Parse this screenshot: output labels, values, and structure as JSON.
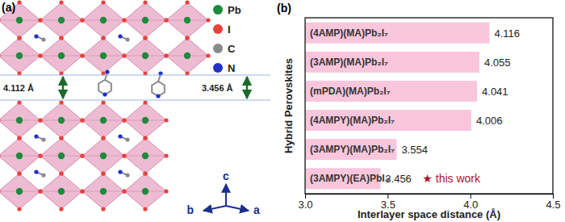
{
  "chart_data": {
    "type": "bar",
    "orientation": "horizontal",
    "title": "(b)",
    "x_label": "Interlayer space distance (Å)",
    "y_label": "Hybrid Perovskites",
    "categories": [
      "(4AMP)(MA)Pb₂I₇",
      "(3AMP)(MA)Pb₂I₇",
      "(mPDA)(MA)Pb₂I₇",
      "(4AMPY)(MA)Pb₂I₇",
      "(3AMPY)(MA)Pb₂I₇",
      "(3AMPY)(EA)PbI₄"
    ],
    "values": [
      4.116,
      4.055,
      4.041,
      4.006,
      3.554,
      3.456
    ],
    "color": "#f9c6dc",
    "data_labels": true,
    "annotations": [
      "★ this work"
    ],
    "xlim": [
      3.0,
      4.5
    ],
    "xticks": [
      {
        "value": 3.0,
        "label": "3.0"
      },
      {
        "value": 3.5,
        "label": "3.5"
      },
      {
        "value": 4.0,
        "label": "4.0"
      },
      {
        "value": 4.5,
        "label": "4.5"
      }
    ],
    "grid": false
  },
  "diagram": {
    "panel_label": "(a)",
    "legend": [
      {
        "label": "Pb",
        "color": "#1f8a3b"
      },
      {
        "label": "I",
        "color": "#e8413c"
      },
      {
        "label": "C",
        "color": "#8a8a8a"
      },
      {
        "label": "N",
        "color": "#2230c8"
      }
    ],
    "distances": [
      "4.112 Å",
      "3.456 Å"
    ],
    "axis_labels": [
      "b",
      "c",
      "a"
    ]
  }
}
